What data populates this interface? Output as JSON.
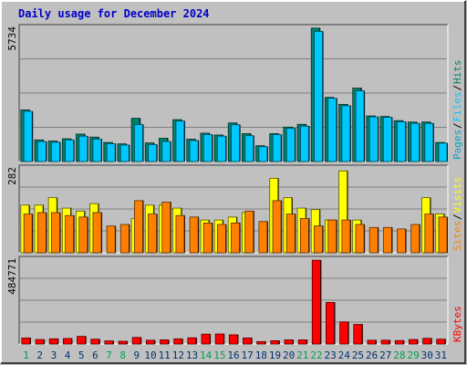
{
  "colors": {
    "background": "#c0c0c0",
    "plot": "#c0c0c0",
    "grid": "#808080",
    "title": "#0000c8",
    "hits": "#00806c",
    "files": "#00c8ff",
    "pages": "#00a0c8",
    "visits": "#ffff00",
    "sites": "#ff8000",
    "kbytes": "#ff0000",
    "weekend_day": "#00a050",
    "weekday": "#003070"
  },
  "chart_data": {
    "type": "bar",
    "title": "Daily usage for December 2024",
    "days": [
      "1",
      "2",
      "3",
      "4",
      "5",
      "6",
      "7",
      "8",
      "9",
      "10",
      "11",
      "12",
      "13",
      "14",
      "15",
      "16",
      "17",
      "18",
      "19",
      "20",
      "21",
      "22",
      "23",
      "24",
      "25",
      "26",
      "27",
      "28",
      "29",
      "30",
      "31"
    ],
    "weekend_days": [
      "1",
      "7",
      "8",
      "14",
      "15",
      "21",
      "22",
      "28",
      "29"
    ],
    "panels": [
      {
        "name": "hits-files-pages",
        "max_label": "5734",
        "ymax": 5734,
        "legend": [
          {
            "text": "Pages",
            "color": "pages"
          },
          {
            "text": "Files",
            "color": "files"
          },
          {
            "text": "Hits",
            "color": "hits"
          }
        ],
        "series": [
          {
            "name": "Hits",
            "color": "hits",
            "values": [
              2220,
              930,
              880,
              980,
              1180,
              1050,
              820,
              760,
              1860,
              800,
              1000,
              1800,
              960,
              1220,
              1140,
              1660,
              1200,
              680,
              1200,
              1480,
              1600,
              5740,
              2760,
              2460,
              3160,
              1960,
              1940,
              1760,
              1700,
              1700,
              820
            ]
          },
          {
            "name": "Files",
            "color": "files",
            "values": [
              2160,
              860,
              830,
              930,
              1090,
              960,
              770,
              710,
              1590,
              730,
              860,
              1740,
              900,
              1160,
              1090,
              1580,
              1110,
              640,
              1160,
              1430,
              1520,
              5600,
              2720,
              2400,
              3040,
              1920,
              1900,
              1710,
              1640,
              1640,
              790
            ]
          }
        ]
      },
      {
        "name": "visits-sites",
        "max_label": "282",
        "ymax": 282,
        "legend": [
          {
            "text": "Sites",
            "color": "sites"
          },
          {
            "text": "Visits",
            "color": "visits"
          }
        ],
        "series": [
          {
            "name": "Visits",
            "color": "visits",
            "values": [
              160,
              160,
              185,
              150,
              140,
              165,
              0,
              0,
              115,
              160,
              160,
              150,
              0,
              110,
              110,
              120,
              135,
              0,
              250,
              185,
              150,
              145,
              110,
              275,
              110,
              0,
              0,
              0,
              0,
              185,
              130
            ]
          },
          {
            "name": "Sites",
            "color": "sites",
            "values": [
              130,
              135,
              135,
              125,
              120,
              135,
              90,
              95,
              175,
              130,
              170,
              125,
              120,
              100,
              95,
              100,
              140,
              105,
              175,
              130,
              115,
              90,
              110,
              110,
              95,
              85,
              85,
              80,
              95,
              130,
              120
            ]
          }
        ]
      },
      {
        "name": "kbytes",
        "max_label": "484771",
        "ymax": 484771,
        "legend": [
          {
            "text": "KBytes",
            "color": "kbytes"
          }
        ],
        "series": [
          {
            "name": "KBytes",
            "color": "kbytes",
            "values": [
              35000,
              26000,
              30000,
              32000,
              44000,
              28000,
              18000,
              16000,
              38000,
              22000,
              24000,
              30000,
              36000,
              57000,
              58000,
              53000,
              35000,
              14000,
              19000,
              24000,
              24000,
              484000,
              240000,
              128000,
              113000,
              22000,
              22000,
              20000,
              26000,
              33000,
              28000
            ]
          }
        ]
      }
    ]
  }
}
